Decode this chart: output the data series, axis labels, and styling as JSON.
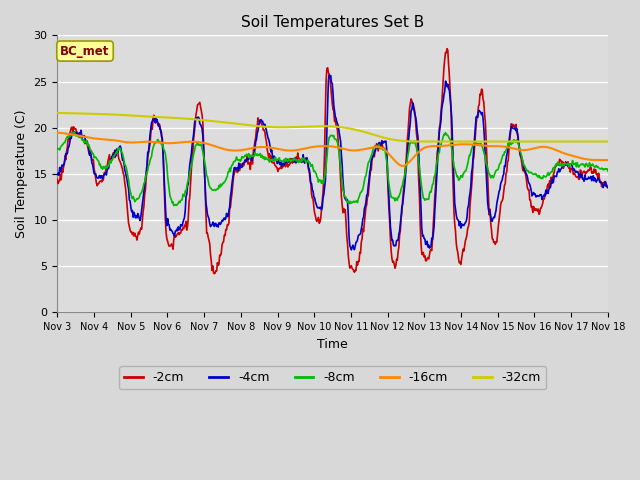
{
  "title": "Soil Temperatures Set B",
  "xlabel": "Time",
  "ylabel": "Soil Temperature (C)",
  "annotation": "BC_met",
  "ylim": [
    0,
    30
  ],
  "yticks": [
    0,
    5,
    10,
    15,
    20,
    25,
    30
  ],
  "xtick_labels": [
    "Nov 3",
    "Nov 4",
    "Nov 5",
    "Nov 6",
    "Nov 7",
    "Nov 8",
    "Nov 9",
    "Nov 10",
    "Nov 11",
    "Nov 12",
    "Nov 13",
    "Nov 14",
    "Nov 15",
    "Nov 16",
    "Nov 17",
    "Nov 18"
  ],
  "series_colors": [
    "#cc0000",
    "#0000cc",
    "#00bb00",
    "#ff8800",
    "#cccc00"
  ],
  "series_labels": [
    "-2cm",
    "-4cm",
    "-8cm",
    "-16cm",
    "-32cm"
  ],
  "fig_facecolor": "#e8e8e8",
  "plot_facecolor": "#e0e0e0",
  "grid_color": "#ffffff",
  "title_fontsize": 11,
  "label_fontsize": 9,
  "tick_fontsize": 8,
  "legend_fontsize": 9,
  "linewidth": 1.2
}
